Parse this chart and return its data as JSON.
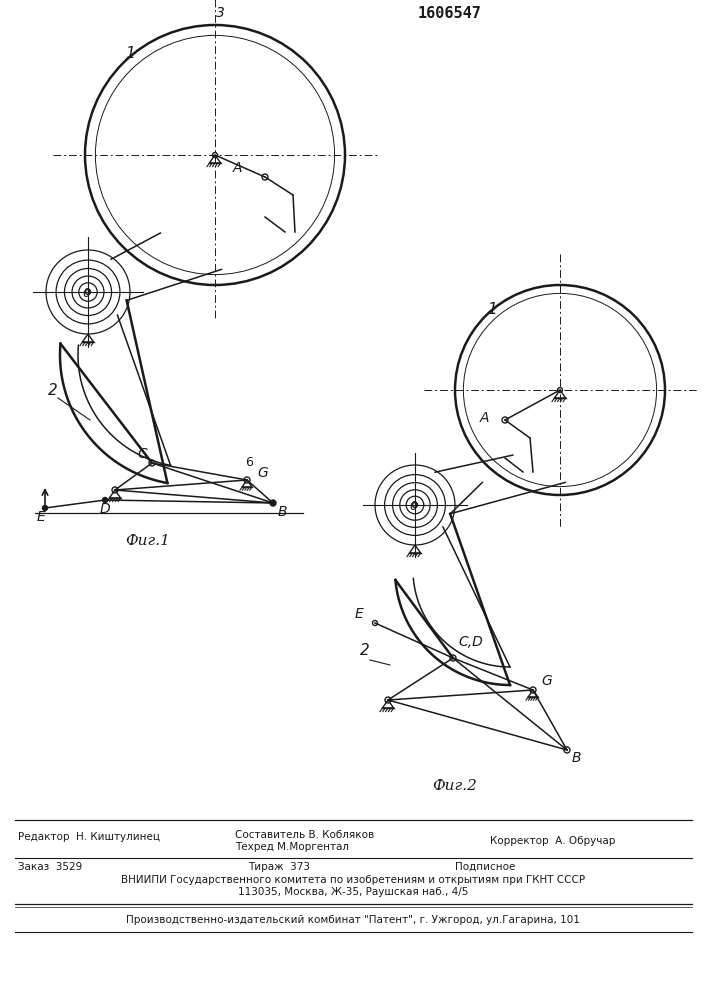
{
  "title": "1606547",
  "bg_color": "#ffffff",
  "line_color": "#1a1a1a",
  "fig1_label": "Фиг.1",
  "fig2_label": "Фиг.2",
  "footer_col1_line1": "Редактор  Н. Киштулинец",
  "footer_col2_line1": "Составитель В. Кобляков",
  "footer_col2_line2": "Техред М.Моргентал",
  "footer_col3_line1": "Корректор  А. Обручар",
  "footer2_line1": "Заказ  3529",
  "footer2_line2": "Тираж  373",
  "footer2_line3": "Подписное",
  "footer2_line4": "ВНИИПИ Государственного комитета по изобретениям и открытиям при ГКНТ СССР",
  "footer2_line5": "113035, Москва, Ж-35, Раушская наб., 4/5",
  "footer3_line1": "Производственно-издательский комбинат \"Патент\", г. Ужгород, ул.Гагарина, 101"
}
